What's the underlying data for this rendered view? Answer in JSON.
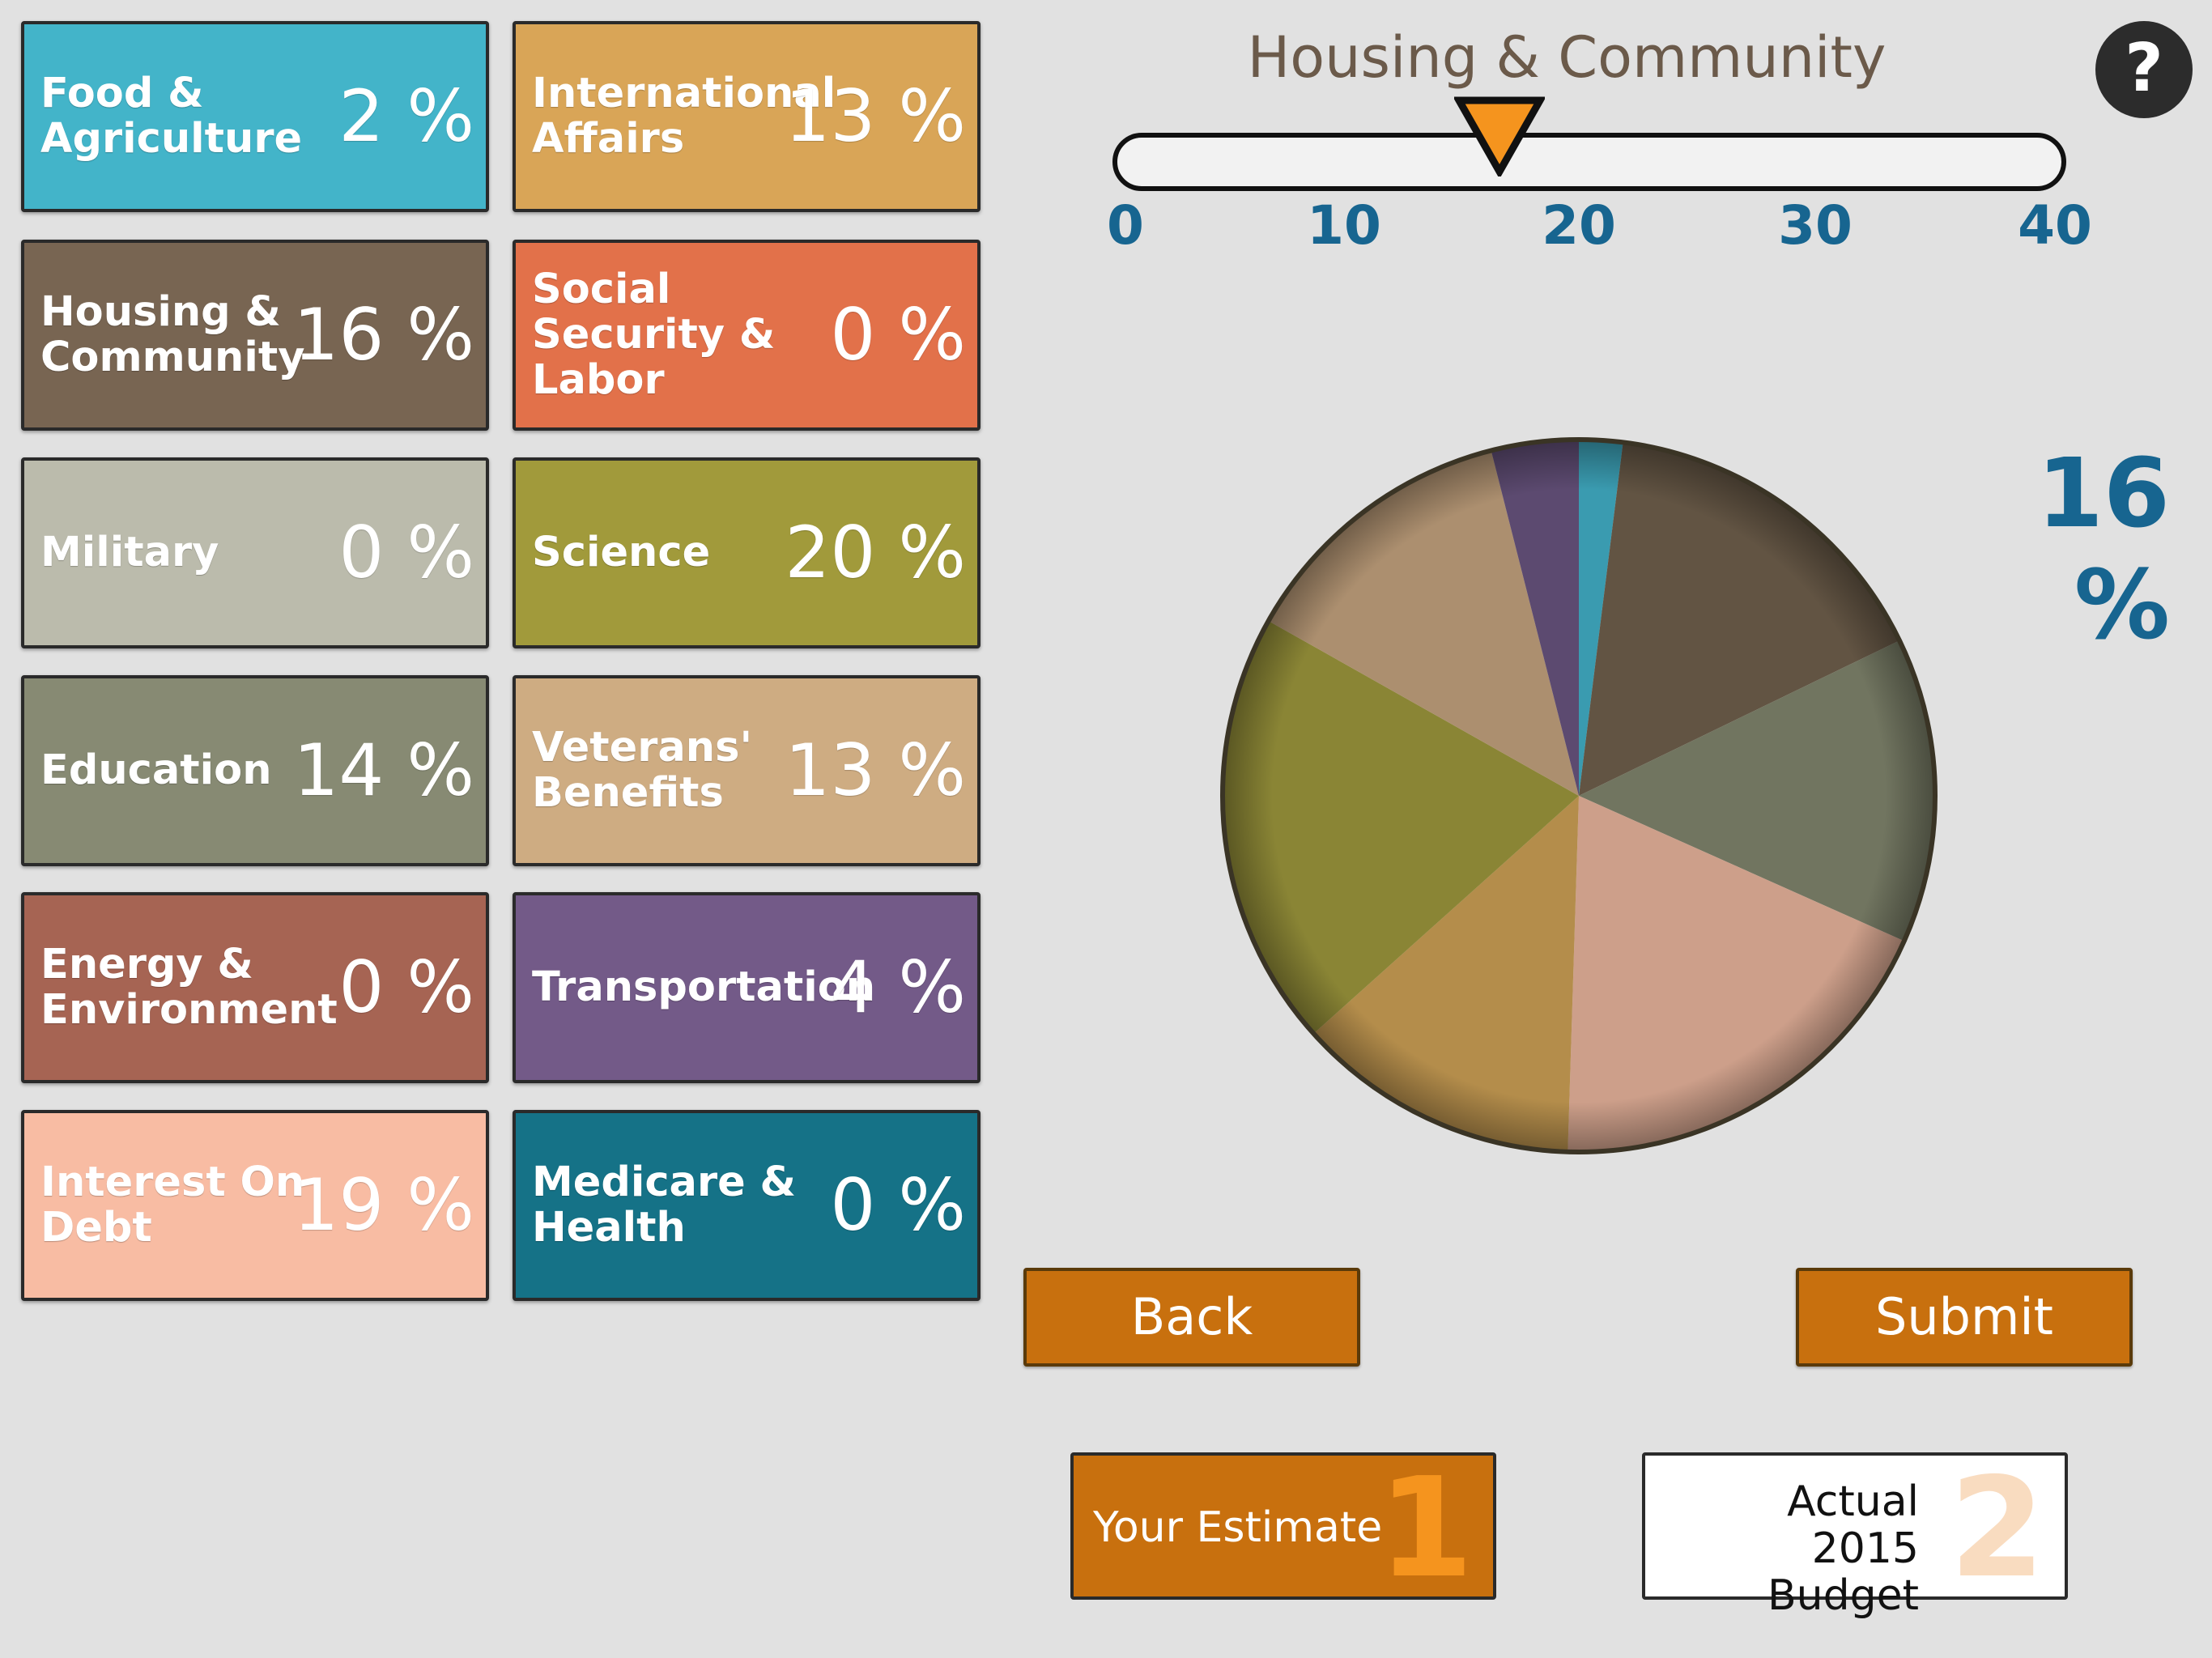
{
  "categories": [
    {
      "id": "food",
      "label": "Food & Agriculture",
      "percent": "2 %",
      "value": 2,
      "tile_color": "#43b4c9",
      "pie_color": "#3a9bb0"
    },
    {
      "id": "international",
      "label": "International Affairs",
      "percent": "13 %",
      "value": 13,
      "tile_color": "#d9a557",
      "pie_color": "#ac8f6f"
    },
    {
      "id": "housing",
      "label": "Housing & Community",
      "percent": "16 %",
      "value": 16,
      "tile_color": "#786552",
      "pie_color": "#625443"
    },
    {
      "id": "social",
      "label": "Social Security & Labor",
      "percent": "0 %",
      "value": 0,
      "tile_color": "#e2714a",
      "pie_color": "#e2714a"
    },
    {
      "id": "military",
      "label": "Military",
      "percent": "0 %",
      "value": 0,
      "tile_color": "#bbbbac",
      "pie_color": "#bbbbac"
    },
    {
      "id": "science",
      "label": "Science",
      "percent": "20 %",
      "value": 20,
      "tile_color": "#a19a3b",
      "pie_color": "#8a8535"
    },
    {
      "id": "education",
      "label": "Education",
      "percent": "14 %",
      "value": 14,
      "tile_color": "#878a73",
      "pie_color": "#717560"
    },
    {
      "id": "veterans",
      "label": "Veterans' Benefits",
      "percent": "13 %",
      "value": 13,
      "tile_color": "#ceac82",
      "pie_color": "#b48d4b"
    },
    {
      "id": "energy",
      "label": "Energy & Environment",
      "percent": "0 %",
      "value": 0,
      "tile_color": "#a66453",
      "pie_color": "#a66453"
    },
    {
      "id": "transportation",
      "label": "Transportation",
      "percent": "4 %",
      "value": 4,
      "tile_color": "#735a88",
      "pie_color": "#5c4a70"
    },
    {
      "id": "interest",
      "label": "Interest On Debt",
      "percent": "19 %",
      "value": 19,
      "tile_color": "#f8bca3",
      "pie_color": "#cd9f8a"
    },
    {
      "id": "medicare",
      "label": "Medicare & Health",
      "percent": "0 %",
      "value": 0,
      "tile_color": "#157287",
      "pie_color": "#157287"
    }
  ],
  "pie_order": [
    "food",
    "housing",
    "education",
    "interest",
    "veterans",
    "science",
    "international",
    "transportation"
  ],
  "slider": {
    "title": "Housing & Community",
    "min": 0,
    "max": 40,
    "value": 16,
    "ticks": [
      "0",
      "10",
      "20",
      "30",
      "40"
    ],
    "thumb_color": "#f5941e"
  },
  "selected_percent": "16 %",
  "help": {
    "label": "?"
  },
  "buttons": {
    "back": "Back",
    "submit": "Submit"
  },
  "modes": {
    "estimate": {
      "label": "Your Estimate",
      "number": "1"
    },
    "actual": {
      "label": "Actual 2015 Budget",
      "number": "2"
    }
  },
  "colors": {
    "background": "#e1e1e1",
    "accent": "#c8700e",
    "value_text": "#176590"
  }
}
